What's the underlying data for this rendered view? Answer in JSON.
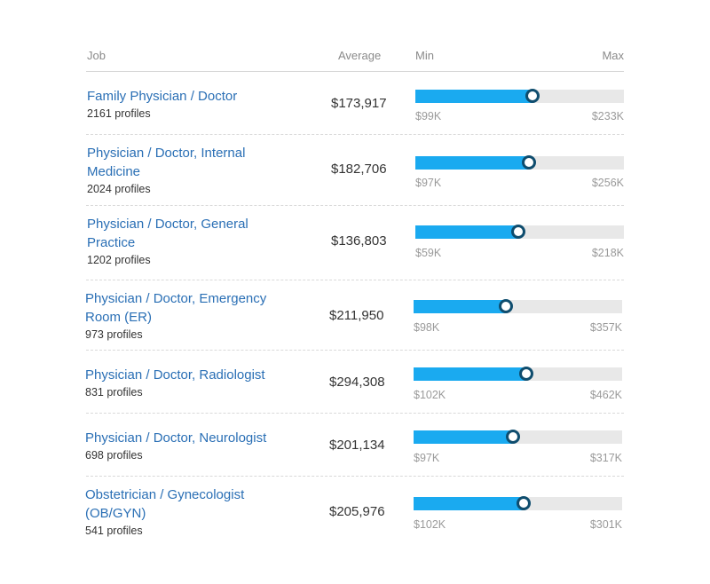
{
  "header": {
    "job": "Job",
    "average": "Average",
    "min": "Min",
    "max": "Max"
  },
  "rows": [
    {
      "title": "Family Physician / Doctor",
      "profiles": "2161 profiles",
      "average": "$173,917",
      "min": "$99K",
      "max": "$233K",
      "avg_value": 173917,
      "min_value": 99000,
      "max_value": 233000
    },
    {
      "title": "Physician / Doctor, Internal Medicine",
      "profiles": "2024 profiles",
      "average": "$182,706",
      "min": "$97K",
      "max": "$256K",
      "avg_value": 182706,
      "min_value": 97000,
      "max_value": 256000
    },
    {
      "title": "Physician / Doctor, General Practice",
      "profiles": "1202 profiles",
      "average": "$136,803",
      "min": "$59K",
      "max": "$218K",
      "avg_value": 136803,
      "min_value": 59000,
      "max_value": 218000
    },
    {
      "title": "Physician / Doctor, Emergency Room (ER)",
      "profiles": "973 profiles",
      "average": "$211,950",
      "min": "$98K",
      "max": "$357K",
      "avg_value": 211950,
      "min_value": 98000,
      "max_value": 357000
    },
    {
      "title": "Physician / Doctor, Radiologist",
      "profiles": "831 profiles",
      "average": "$294,308",
      "min": "$102K",
      "max": "$462K",
      "avg_value": 294308,
      "min_value": 102000,
      "max_value": 462000
    },
    {
      "title": "Physician / Doctor, Neurologist",
      "profiles": "698 profiles",
      "average": "$201,134",
      "min": "$97K",
      "max": "$317K",
      "avg_value": 201134,
      "min_value": 97000,
      "max_value": 317000
    },
    {
      "title": "Obstetrician / Gynecologist (OB/GYN)",
      "profiles": "541 profiles",
      "average": "$205,976",
      "min": "$102K",
      "max": "$301K",
      "avg_value": 205976,
      "min_value": 102000,
      "max_value": 301000
    }
  ],
  "colors": {
    "link": "#2a6fb5",
    "bar_fill": "#1aaaf0",
    "bar_track": "#e8e8e8",
    "knob_border": "#0f4d6e"
  }
}
